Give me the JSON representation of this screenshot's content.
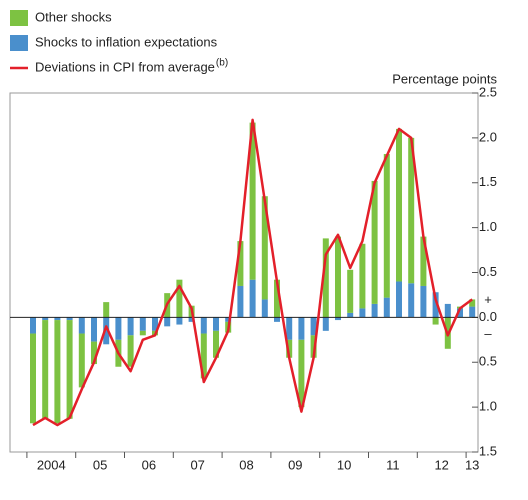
{
  "chart_data": {
    "type": "bar",
    "stacked": true,
    "y_axis_label": "Percentage points",
    "footnote_marker": "(b)",
    "sign_labels": [
      "+",
      "–"
    ],
    "categories": [
      "2004",
      null,
      null,
      null,
      "05",
      null,
      null,
      null,
      "06",
      null,
      null,
      null,
      "07",
      null,
      null,
      null,
      "08",
      null,
      null,
      null,
      "09",
      null,
      null,
      null,
      "10",
      null,
      null,
      null,
      "11",
      null,
      null,
      null,
      "12",
      null,
      null,
      null,
      "13"
    ],
    "series": [
      {
        "name": "Other shocks",
        "type": "bar",
        "color": "#7dc242",
        "values": [
          -1.0,
          -1.1,
          -1.15,
          -1.1,
          -0.6,
          -0.25,
          0.17,
          -0.3,
          -0.35,
          -0.05,
          -0.05,
          0.27,
          0.42,
          0.13,
          -0.5,
          -0.3,
          -0.12,
          0.5,
          1.75,
          1.15,
          0.42,
          -0.2,
          -0.75,
          -0.25,
          0.88,
          0.9,
          0.48,
          0.72,
          1.37,
          1.6,
          1.7,
          1.62,
          0.55,
          -0.08,
          -0.35,
          0.02,
          0.08
        ]
      },
      {
        "name": "Shocks to inflation expectations",
        "type": "bar",
        "color": "#4a8fcc",
        "values": [
          -0.18,
          -0.03,
          -0.03,
          -0.03,
          -0.18,
          -0.27,
          -0.3,
          -0.25,
          -0.2,
          -0.15,
          -0.15,
          -0.1,
          -0.08,
          -0.05,
          -0.18,
          -0.15,
          -0.05,
          0.35,
          0.42,
          0.2,
          -0.05,
          -0.25,
          -0.25,
          -0.2,
          -0.15,
          -0.03,
          0.05,
          0.1,
          0.15,
          0.22,
          0.4,
          0.38,
          0.35,
          0.28,
          0.15,
          0.1,
          0.12
        ]
      },
      {
        "name": "Deviations in CPI from average",
        "type": "line",
        "color": "#e3202a",
        "values": [
          -1.2,
          -1.12,
          -1.2,
          -1.12,
          -0.8,
          -0.5,
          -0.1,
          -0.4,
          -0.6,
          -0.25,
          -0.2,
          0.15,
          0.35,
          0.1,
          -0.72,
          -0.45,
          -0.15,
          0.85,
          2.2,
          1.3,
          0.4,
          -0.45,
          -1.05,
          -0.45,
          0.7,
          0.92,
          0.55,
          0.85,
          1.5,
          1.8,
          2.1,
          2.0,
          0.9,
          0.2,
          -0.2,
          0.1,
          0.2
        ]
      }
    ],
    "ylim": [
      -1.5,
      2.5
    ],
    "yticks": [
      {
        "value": -1.5,
        "label": "1.5"
      },
      {
        "value": -1.0,
        "label": "1.0"
      },
      {
        "value": -0.5,
        "label": "0.5"
      },
      {
        "value": 0,
        "label": "0.0"
      },
      {
        "value": 0.5,
        "label": "0.5"
      },
      {
        "value": 1.0,
        "label": "1.0"
      },
      {
        "value": 1.5,
        "label": "1.5"
      },
      {
        "value": 2.0,
        "label": "2.0"
      },
      {
        "value": 2.5,
        "label": "2.5"
      }
    ],
    "grid": false
  }
}
